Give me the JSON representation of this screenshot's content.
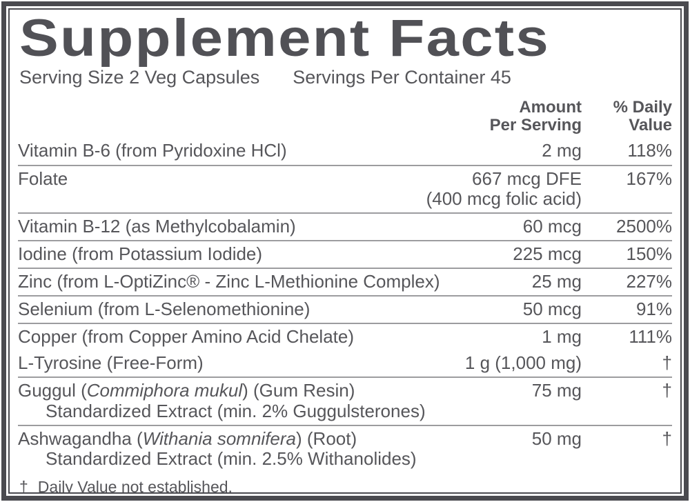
{
  "label": {
    "title": "Supplement Facts",
    "serving_size": "Serving Size 2 Veg Capsules",
    "servings_per_container": "Servings Per Container 45",
    "columns": {
      "amount": "Amount\nPer Serving",
      "daily_value": "% Daily\nValue"
    },
    "footnote_symbol": "†",
    "footnote_text": "Daily Value not established.",
    "colors": {
      "frame": "#4a4a4f",
      "text": "#56565a",
      "separator": "#9c9c9f",
      "background": "#ffffff"
    }
  },
  "rows": {
    "nutrients": [
      {
        "name_parts": [
          {
            "text": "Vitamin B-6 (from Pyridoxine HCl)"
          }
        ],
        "amount": "2 mg",
        "daily_value": "118%"
      },
      {
        "name_parts": [
          {
            "text": "Folate"
          }
        ],
        "amount": "667 mcg DFE\n(400 mcg folic acid)",
        "daily_value": "167%"
      },
      {
        "name_parts": [
          {
            "text": "Vitamin B-12 (as Methylcobalamin)"
          }
        ],
        "amount": "60 mcg",
        "daily_value": "2500%"
      },
      {
        "name_parts": [
          {
            "text": "Iodine (from Potassium Iodide)"
          }
        ],
        "amount": "225 mcg",
        "daily_value": "150%"
      },
      {
        "name_parts": [
          {
            "text": "Zinc (from L-OptiZinc® - Zinc L-Methionine Complex)"
          }
        ],
        "amount": "25 mg",
        "daily_value": "227%"
      },
      {
        "name_parts": [
          {
            "text": "Selenium (from L-Selenomethionine)"
          }
        ],
        "amount": "50 mcg",
        "daily_value": "91%"
      },
      {
        "name_parts": [
          {
            "text": "Copper (from Copper Amino Acid Chelate)"
          }
        ],
        "amount": "1 mg",
        "daily_value": "111%"
      }
    ],
    "botanicals": [
      {
        "name_parts": [
          {
            "text": "L-Tyrosine (Free-Form)"
          }
        ],
        "amount": "1 g (1,000 mg)",
        "daily_value": "†"
      },
      {
        "name_parts": [
          {
            "text": "Guggul ("
          },
          {
            "text": "Commiphora mukul",
            "italic": true
          },
          {
            "text": ") (Gum Resin)"
          }
        ],
        "line2": "Standardized Extract (min. 2% Guggulsterones)",
        "amount": "75 mg",
        "daily_value": "†"
      },
      {
        "name_parts": [
          {
            "text": "Ashwagandha ("
          },
          {
            "text": "Withania somnifera",
            "italic": true
          },
          {
            "text": ") (Root)"
          }
        ],
        "line2": "Standardized Extract (min. 2.5% Withanolides)",
        "amount": "50 mg",
        "daily_value": "†"
      }
    ]
  }
}
